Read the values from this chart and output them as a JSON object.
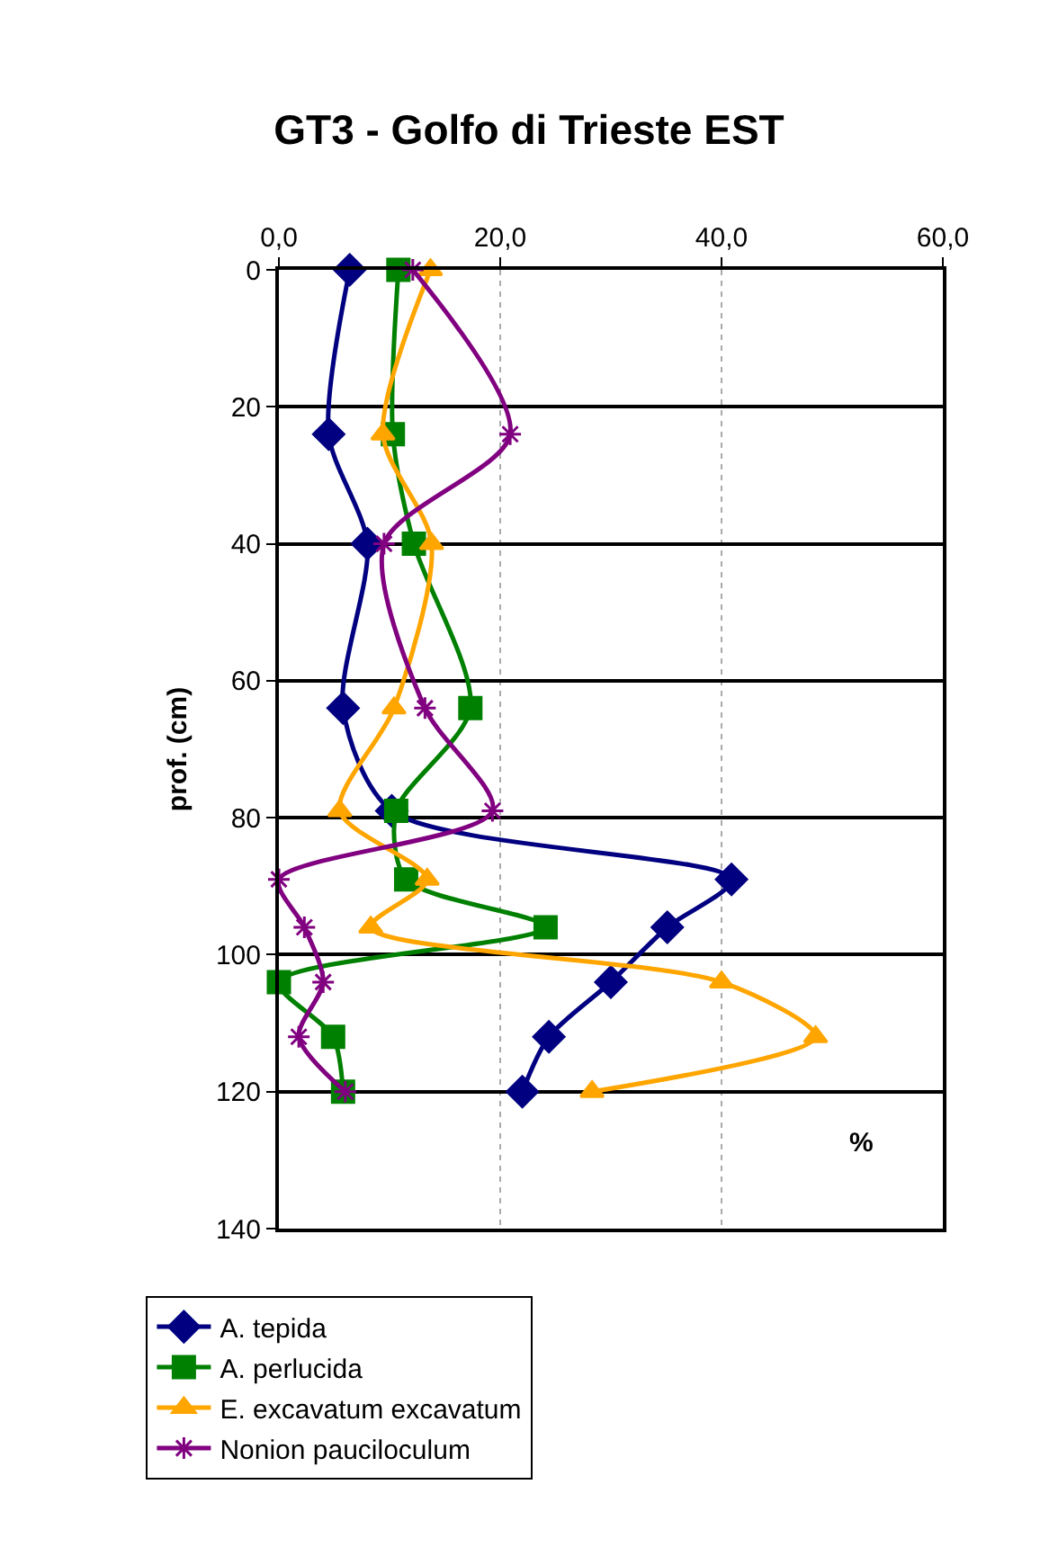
{
  "chart_data": {
    "type": "line",
    "title": "GT3 - Golfo di Trieste EST",
    "xlabel": "%",
    "ylabel": "prof. (cm)",
    "xlim": [
      0,
      60
    ],
    "xticks": [
      {
        "value": 0,
        "label": "0,0"
      },
      {
        "value": 20,
        "label": "20,0"
      },
      {
        "value": 40,
        "label": "40,0"
      },
      {
        "value": 60,
        "label": "60,0"
      }
    ],
    "ylim": [
      140,
      0
    ],
    "yticks": [
      0,
      20,
      40,
      60,
      80,
      100,
      120,
      140
    ],
    "grid": true,
    "legend": "bottom",
    "series": [
      {
        "name": "A. tepida",
        "color": "#000080",
        "marker": "diamond",
        "x": [
          6.4,
          4.5,
          8.0,
          5.8,
          10.2,
          40.9,
          35.1,
          30.0,
          24.4,
          22.0
        ],
        "values": [
          0,
          24,
          40,
          64,
          79,
          89,
          96,
          104,
          112,
          120
        ]
      },
      {
        "name": "A. perlucida",
        "color": "#008000",
        "marker": "square",
        "x": [
          10.8,
          10.3,
          12.2,
          17.3,
          10.6,
          11.5,
          24.1,
          0,
          4.9,
          5.8
        ],
        "values": [
          0,
          24,
          40,
          64,
          79,
          89,
          96,
          104,
          112,
          120
        ]
      },
      {
        "name": "E. excavatum excavatum",
        "color": "#ffa500",
        "marker": "triangle",
        "x": [
          13.7,
          9.4,
          13.8,
          10.4,
          5.5,
          13.4,
          8.3,
          40.0,
          48.5,
          28.3
        ],
        "values": [
          0,
          24,
          40,
          64,
          79,
          89,
          96,
          104,
          112,
          120
        ]
      },
      {
        "name": "Nonion pauciloculum",
        "color": "#800080",
        "marker": "cross",
        "x": [
          12.1,
          20.9,
          9.5,
          13.2,
          19.3,
          0,
          2.3,
          4.0,
          1.8,
          6.0
        ],
        "values": [
          0,
          24,
          40,
          64,
          79,
          89,
          96,
          104,
          112,
          120
        ]
      }
    ]
  }
}
